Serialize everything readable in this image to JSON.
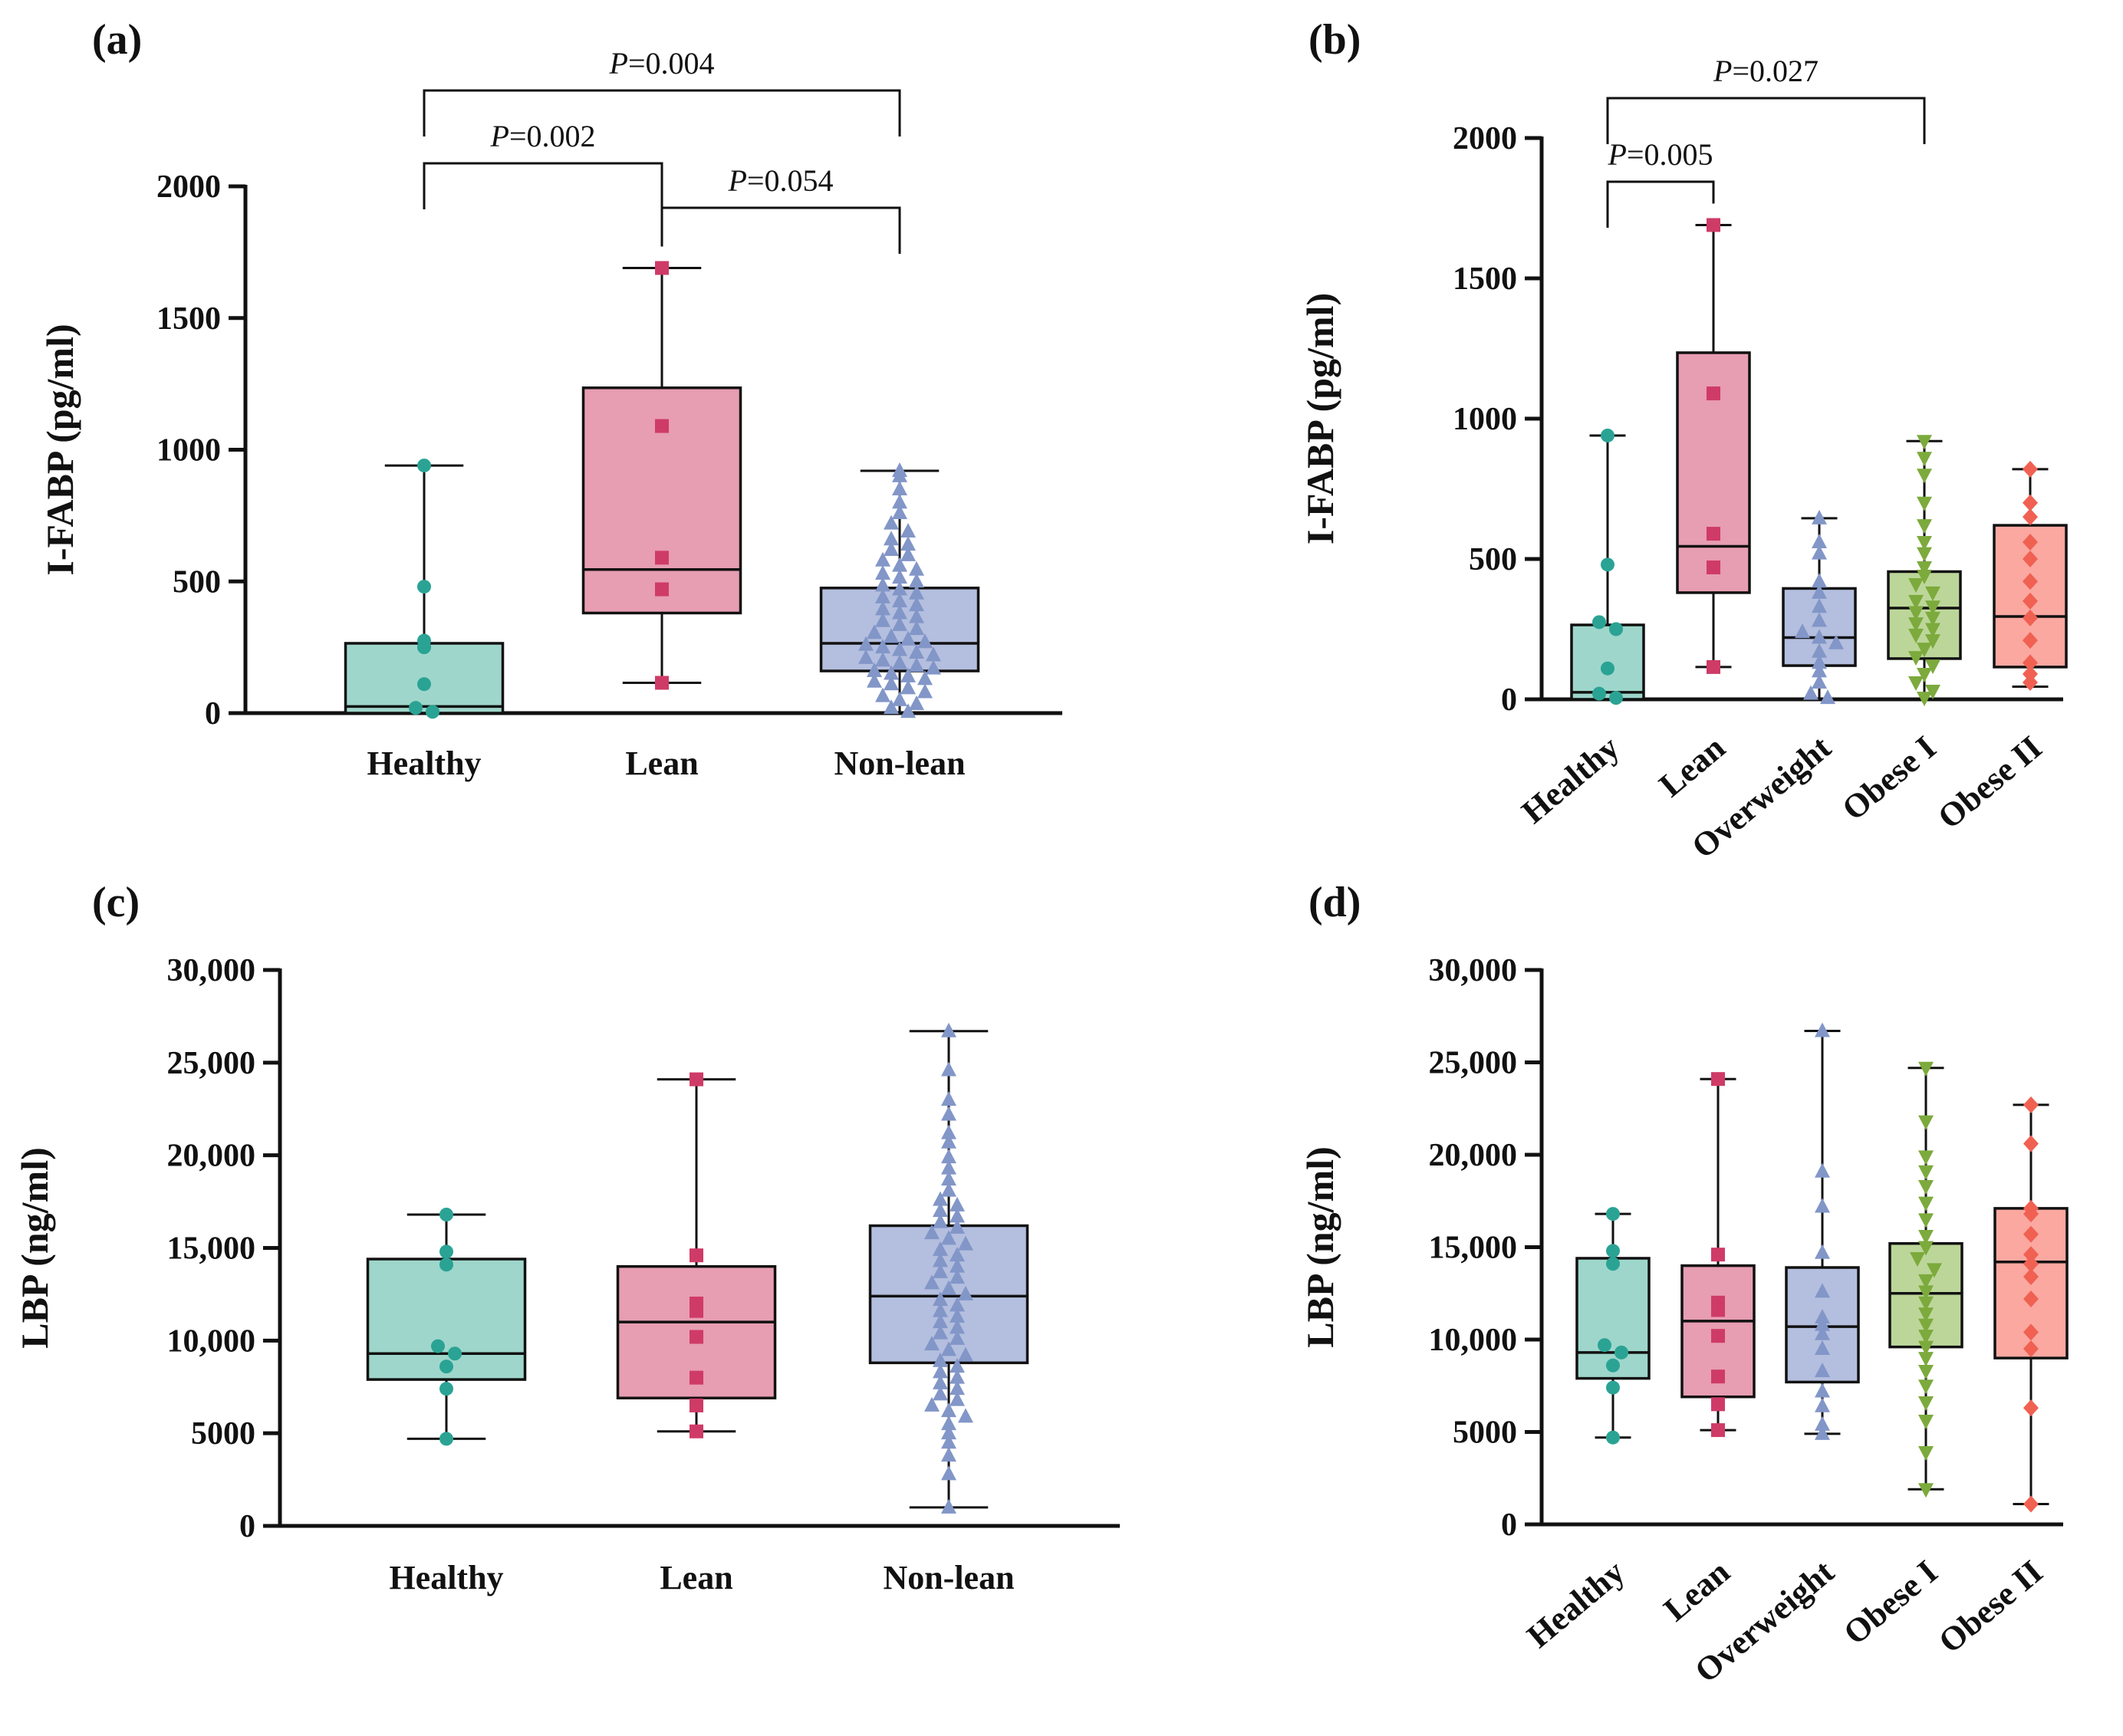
{
  "chart_data": [
    {
      "panel": "(a)",
      "type": "box",
      "title": "",
      "xlabel": "",
      "ylabel": "I-FABP (pg/ml)",
      "ylim": [
        0,
        2000
      ],
      "yticks": [
        0,
        500,
        1000,
        1500,
        2000
      ],
      "ytick_labels": [
        "0",
        "500",
        "1000",
        "1500",
        "2000"
      ],
      "categories": [
        "Healthy",
        "Lean",
        "Non-lean"
      ],
      "rotate_labels": false,
      "series": [
        {
          "name": "Healthy",
          "color": "#9ed6cb",
          "marker_color": "#2aa394",
          "marker": "circle",
          "min": 0,
          "q1": 0,
          "median": 25,
          "q3": 265,
          "max": 940,
          "points": [
            940,
            480,
            275,
            250,
            110,
            20,
            5
          ]
        },
        {
          "name": "Lean",
          "color": "#e79db2",
          "marker_color": "#cf3b67",
          "marker": "square",
          "min": 115,
          "q1": 380,
          "median": 545,
          "q3": 1235,
          "max": 1690,
          "points": [
            1690,
            1090,
            590,
            470,
            115
          ]
        },
        {
          "name": "Non-lean",
          "color": "#b4bede",
          "marker_color": "#8296c8",
          "marker": "triangle",
          "min": 0,
          "q1": 160,
          "median": 265,
          "q3": 475,
          "max": 920,
          "points": [
            920,
            900,
            850,
            800,
            760,
            720,
            690,
            660,
            640,
            620,
            600,
            580,
            560,
            545,
            530,
            515,
            500,
            485,
            470,
            455,
            440,
            425,
            410,
            395,
            380,
            365,
            350,
            335,
            320,
            305,
            290,
            280,
            270,
            260,
            250,
            240,
            230,
            220,
            210,
            200,
            190,
            180,
            170,
            160,
            150,
            140,
            130,
            120,
            110,
            95,
            80,
            65,
            50,
            35,
            20,
            5
          ]
        }
      ],
      "comparisons": [
        {
          "from": "Healthy",
          "to": "Non-lean",
          "label": "=0.004"
        },
        {
          "from": "Healthy",
          "to": "Lean",
          "label": "=0.002"
        },
        {
          "from": "Lean",
          "to": "Non-lean",
          "label": "=0.054"
        }
      ]
    },
    {
      "panel": "(b)",
      "type": "box",
      "title": "",
      "xlabel": "",
      "ylabel": "I-FABP (pg/ml)",
      "ylim": [
        0,
        2000
      ],
      "yticks": [
        0,
        500,
        1000,
        1500,
        2000
      ],
      "ytick_labels": [
        "0",
        "500",
        "1000",
        "1500",
        "2000"
      ],
      "categories": [
        "Healthy",
        "Lean",
        "Overweight",
        "Obese I",
        "Obese II"
      ],
      "rotate_labels": true,
      "series": [
        {
          "name": "Healthy",
          "color": "#9ed6cb",
          "marker_color": "#2aa394",
          "marker": "circle",
          "min": 0,
          "q1": 0,
          "median": 25,
          "q3": 265,
          "max": 940,
          "points": [
            940,
            480,
            275,
            250,
            110,
            20,
            5
          ]
        },
        {
          "name": "Lean",
          "color": "#e79db2",
          "marker_color": "#cf3b67",
          "marker": "square",
          "min": 115,
          "q1": 380,
          "median": 545,
          "q3": 1235,
          "max": 1690,
          "points": [
            1690,
            1090,
            590,
            470,
            115
          ]
        },
        {
          "name": "Overweight",
          "color": "#b4bede",
          "marker_color": "#8296c8",
          "marker": "triangle",
          "min": 0,
          "q1": 120,
          "median": 220,
          "q3": 395,
          "max": 645,
          "points": [
            645,
            560,
            520,
            420,
            380,
            330,
            280,
            240,
            220,
            200,
            170,
            130,
            100,
            60,
            20,
            5
          ]
        },
        {
          "name": "Obese I",
          "color": "#bcd69a",
          "marker_color": "#7caa3c",
          "marker": "triangle-down",
          "min": 0,
          "q1": 145,
          "median": 325,
          "q3": 455,
          "max": 920,
          "points": [
            920,
            860,
            800,
            700,
            620,
            560,
            520,
            470,
            440,
            410,
            380,
            350,
            330,
            310,
            290,
            270,
            250,
            230,
            210,
            180,
            150,
            120,
            90,
            60,
            30,
            5
          ]
        },
        {
          "name": "Obese II",
          "color": "#fba8a1",
          "marker_color": "#f06152",
          "marker": "diamond",
          "min": 45,
          "q1": 115,
          "median": 295,
          "q3": 620,
          "max": 820,
          "points": [
            820,
            700,
            650,
            560,
            500,
            420,
            350,
            290,
            210,
            130,
            90,
            60
          ]
        }
      ],
      "comparisons": [
        {
          "from": "Healthy",
          "to": "Obese I",
          "label": "=0.027"
        },
        {
          "from": "Healthy",
          "to": "Lean",
          "label": "=0.005"
        }
      ]
    },
    {
      "panel": "(c)",
      "type": "box",
      "title": "",
      "xlabel": "",
      "ylabel": "LBP (ng/ml)",
      "ylim": [
        0,
        30000
      ],
      "yticks": [
        0,
        5000,
        10000,
        15000,
        20000,
        25000,
        30000
      ],
      "ytick_labels": [
        "0",
        "5000",
        "10,000",
        "15,000",
        "20,000",
        "25,000",
        "30,000"
      ],
      "categories": [
        "Healthy",
        "Lean",
        "Non-lean"
      ],
      "rotate_labels": false,
      "series": [
        {
          "name": "Healthy",
          "color": "#9ed6cb",
          "marker_color": "#2aa394",
          "marker": "circle",
          "min": 4700,
          "q1": 7900,
          "median": 9300,
          "q3": 14400,
          "max": 16800,
          "points": [
            16800,
            14800,
            14100,
            9700,
            9300,
            8600,
            7400,
            4700
          ]
        },
        {
          "name": "Lean",
          "color": "#e79db2",
          "marker_color": "#cf3b67",
          "marker": "square",
          "min": 5100,
          "q1": 6900,
          "median": 11000,
          "q3": 14000,
          "max": 24100,
          "points": [
            24100,
            14600,
            12000,
            11600,
            10200,
            8000,
            6500,
            5100
          ]
        },
        {
          "name": "Non-lean",
          "color": "#b4bede",
          "marker_color": "#8296c8",
          "marker": "triangle",
          "min": 1000,
          "q1": 8800,
          "median": 12400,
          "q3": 16200,
          "max": 26700,
          "points": [
            26700,
            24600,
            23000,
            22200,
            21200,
            20700,
            19900,
            19300,
            18700,
            18100,
            17600,
            17300,
            17000,
            16700,
            16400,
            16100,
            15800,
            15500,
            15200,
            14900,
            14600,
            14300,
            14000,
            13700,
            13400,
            13100,
            12800,
            12500,
            12200,
            11900,
            11600,
            11300,
            11000,
            10700,
            10400,
            10100,
            9800,
            9500,
            9200,
            8900,
            8600,
            8300,
            8000,
            7700,
            7400,
            7100,
            6800,
            6500,
            6200,
            5900,
            5500,
            5000,
            4500,
            3800,
            2800,
            1000
          ]
        }
      ],
      "comparisons": []
    },
    {
      "panel": "(d)",
      "type": "box",
      "title": "",
      "xlabel": "",
      "ylabel": "LBP (ng/ml)",
      "ylim": [
        0,
        30000
      ],
      "yticks": [
        0,
        5000,
        10000,
        15000,
        20000,
        25000,
        30000
      ],
      "ytick_labels": [
        "0",
        "5000",
        "10,000",
        "15,000",
        "20,000",
        "25,000",
        "30,000"
      ],
      "categories": [
        "Healthy",
        "Lean",
        "Overweight",
        "Obese I",
        "Obese II"
      ],
      "rotate_labels": true,
      "series": [
        {
          "name": "Healthy",
          "color": "#9ed6cb",
          "marker_color": "#2aa394",
          "marker": "circle",
          "min": 4700,
          "q1": 7900,
          "median": 9300,
          "q3": 14400,
          "max": 16800,
          "points": [
            16800,
            14800,
            14100,
            9700,
            9300,
            8600,
            7400,
            4700
          ]
        },
        {
          "name": "Lean",
          "color": "#e79db2",
          "marker_color": "#cf3b67",
          "marker": "square",
          "min": 5100,
          "q1": 6900,
          "median": 11000,
          "q3": 14000,
          "max": 24100,
          "points": [
            24100,
            14600,
            12000,
            11600,
            10200,
            8000,
            6500,
            5100
          ]
        },
        {
          "name": "Overweight",
          "color": "#b4bede",
          "marker_color": "#8296c8",
          "marker": "triangle",
          "min": 4900,
          "q1": 7700,
          "median": 10700,
          "q3": 13900,
          "max": 26700,
          "points": [
            26700,
            19100,
            17200,
            14700,
            12600,
            11200,
            10800,
            10300,
            9500,
            8300,
            7200,
            6400,
            5400,
            4900
          ]
        },
        {
          "name": "Obese I",
          "color": "#bcd69a",
          "marker_color": "#7caa3c",
          "marker": "triangle-down",
          "min": 1900,
          "q1": 9600,
          "median": 12500,
          "q3": 15200,
          "max": 24700,
          "points": [
            24700,
            21800,
            19900,
            19100,
            18300,
            17400,
            16500,
            15600,
            15000,
            14400,
            13800,
            13200,
            12600,
            12000,
            11400,
            10800,
            10200,
            9600,
            9000,
            8300,
            7500,
            6600,
            5600,
            3900,
            1900
          ]
        },
        {
          "name": "Obese II",
          "color": "#fba8a1",
          "marker_color": "#f06152",
          "marker": "diamond",
          "min": 1100,
          "q1": 9000,
          "median": 14200,
          "q3": 17100,
          "max": 22700,
          "points": [
            22700,
            20600,
            17100,
            16800,
            15700,
            14600,
            14100,
            13400,
            12200,
            10400,
            9500,
            6300,
            1100
          ]
        }
      ],
      "comparisons": []
    }
  ]
}
